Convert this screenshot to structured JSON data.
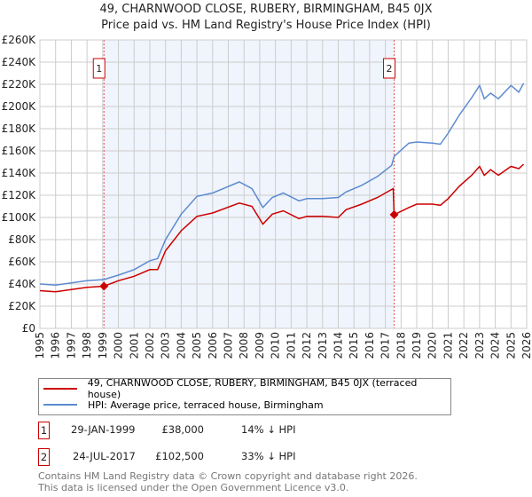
{
  "chart_data": {
    "type": "line",
    "title": "49, CHARNWOOD CLOSE, RUBERY, BIRMINGHAM, B45 0JX",
    "subtitle": "Price paid vs. HM Land Registry's House Price Index (HPI)",
    "xlim": [
      1995,
      2026
    ],
    "ylim": [
      0,
      260000
    ],
    "x_ticks": [
      "1995",
      "1996",
      "1997",
      "1998",
      "1999",
      "2000",
      "2001",
      "2002",
      "2003",
      "2004",
      "2005",
      "2006",
      "2007",
      "2008",
      "2009",
      "2010",
      "2011",
      "2012",
      "2013",
      "2014",
      "2015",
      "2016",
      "2017",
      "2018",
      "2019",
      "2020",
      "2021",
      "2022",
      "2023",
      "2024",
      "2025",
      "2026"
    ],
    "y_ticks": [
      "£0",
      "£20K",
      "£40K",
      "£60K",
      "£80K",
      "£100K",
      "£120K",
      "£140K",
      "£160K",
      "£180K",
      "£200K",
      "£220K",
      "£240K",
      "£260K"
    ],
    "grid": true,
    "series": [
      {
        "name": "49, CHARNWOOD CLOSE, RUBERY, BIRMINGHAM, B45 0JX (terraced house)",
        "color": "#cc0000",
        "x": [
          1995,
          1996,
          1997,
          1998,
          1999.08,
          2000,
          2001,
          2002,
          2002.5,
          2003,
          2004,
          2005,
          2006,
          2007.7,
          2008.5,
          2009.2,
          2009.8,
          2010.5,
          2011.5,
          2012,
          2013,
          2014,
          2014.5,
          2015.5,
          2016.5,
          2017.5,
          2017.56,
          2018.5,
          2019,
          2020,
          2020.5,
          2021,
          2021.7,
          2022.5,
          2023,
          2023.3,
          2023.7,
          2024.2,
          2025,
          2025.5,
          2025.8
        ],
        "y": [
          34000,
          33000,
          35000,
          37000,
          38000,
          43000,
          47000,
          53000,
          53000,
          70000,
          88000,
          101000,
          104000,
          113000,
          110000,
          94000,
          103000,
          106000,
          99000,
          101000,
          101000,
          100000,
          107000,
          112000,
          118000,
          126000,
          102500,
          109000,
          112000,
          112000,
          111000,
          117000,
          128000,
          138000,
          146000,
          138000,
          143000,
          138000,
          146000,
          144000,
          148000
        ]
      },
      {
        "name": "HPI: Average price, terraced house, Birmingham",
        "color": "#5b8bd0",
        "x": [
          1995,
          1996,
          1997,
          1998,
          1999.08,
          2000,
          2001,
          2002,
          2002.5,
          2003,
          2004,
          2005,
          2006,
          2007.7,
          2008.5,
          2009.2,
          2009.8,
          2010.5,
          2011.5,
          2012,
          2013,
          2014,
          2014.5,
          2015.5,
          2016.5,
          2017.4,
          2017.56,
          2018.5,
          2019,
          2020,
          2020.5,
          2021,
          2021.7,
          2022.5,
          2023,
          2023.3,
          2023.7,
          2024.2,
          2025,
          2025.5,
          2025.8
        ],
        "y": [
          40000,
          39000,
          41000,
          43000,
          44000,
          48000,
          53000,
          61000,
          63000,
          80000,
          103000,
          119000,
          122000,
          132000,
          126000,
          109000,
          118000,
          122000,
          115000,
          117000,
          117000,
          118000,
          123000,
          129000,
          137000,
          147000,
          155000,
          167000,
          168000,
          167000,
          166000,
          176000,
          192000,
          208000,
          219000,
          207000,
          212000,
          207000,
          219000,
          213000,
          221000
        ]
      }
    ],
    "annotations": [
      {
        "label": "1",
        "x": 1999.08,
        "y": 38000
      },
      {
        "label": "2",
        "x": 2017.56,
        "y": 102500
      }
    ],
    "shaded_range": [
      1999.08,
      2017.56
    ],
    "legend_position": "bottom"
  },
  "legend": {
    "property": "49, CHARNWOOD CLOSE, RUBERY, BIRMINGHAM, B45 0JX (terraced house)",
    "hpi": "HPI: Average price, terraced house, Birmingham"
  },
  "transactions": [
    {
      "num": "1",
      "date": "29-JAN-1999",
      "price": "£38,000",
      "hpi": "14% ↓ HPI"
    },
    {
      "num": "2",
      "date": "24-JUL-2017",
      "price": "£102,500",
      "hpi": "33% ↓ HPI"
    }
  ],
  "footer": {
    "line1": "Contains HM Land Registry data © Crown copyright and database right 2026.",
    "line2": "This data is licensed under the Open Government Licence v3.0."
  }
}
